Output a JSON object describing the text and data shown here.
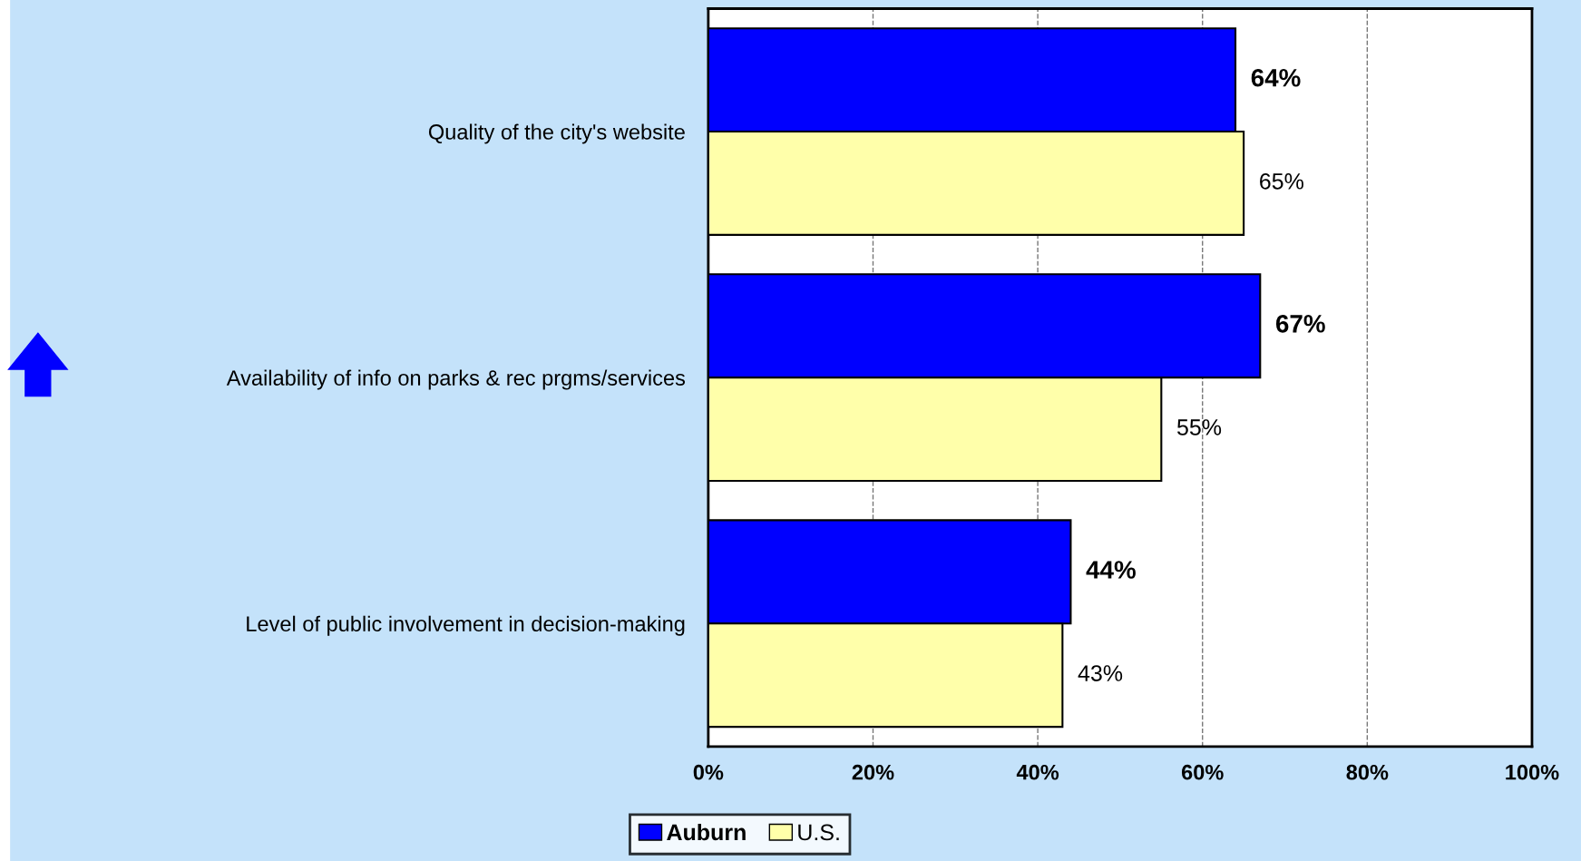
{
  "chart_data": {
    "type": "bar",
    "orientation": "horizontal",
    "categories": [
      "Quality of the city's website",
      "Availability of info on parks & rec prgms/services",
      "Level of public involvement in decision-making"
    ],
    "series": [
      {
        "name": "Auburn",
        "color": "#0000ff",
        "values": [
          64,
          67,
          44
        ],
        "value_labels": [
          "64%",
          "67%",
          "44%"
        ]
      },
      {
        "name": "U.S.",
        "color": "#ffffaa",
        "values": [
          65,
          55,
          43
        ],
        "value_labels": [
          "65%",
          "55%",
          "43%"
        ]
      }
    ],
    "xlim": [
      0,
      100
    ],
    "xticks": [
      {
        "value": 0,
        "label": "0%"
      },
      {
        "value": 20,
        "label": "20%"
      },
      {
        "value": 40,
        "label": "40%"
      },
      {
        "value": 60,
        "label": "60%"
      },
      {
        "value": 80,
        "label": "80%"
      },
      {
        "value": 100,
        "label": "100%"
      }
    ],
    "grid": "x",
    "legend": "bottom"
  }
}
